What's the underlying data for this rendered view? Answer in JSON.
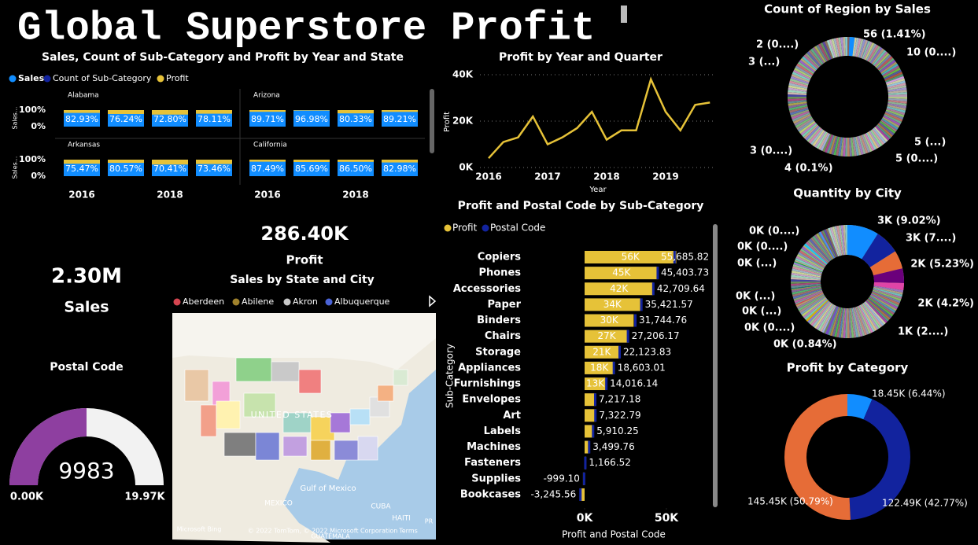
{
  "title": "Global Superstore Profit",
  "cards": [
    {
      "value": "2.30M",
      "label": "Sales"
    },
    {
      "value": "286.40K",
      "label": "Profit"
    }
  ],
  "chart_data": [
    {
      "type": "multibar",
      "title": "Sales, Count of Sub-Category and Profit by Year and State",
      "legend": [
        {
          "name": "Sales",
          "color": "#118dff"
        },
        {
          "name": "Count of Sub-Category",
          "color": "#12239e"
        },
        {
          "name": "Profit",
          "color": "#e6c238"
        }
      ],
      "categories": [
        "2016",
        null,
        "2018",
        null
      ],
      "panels": [
        {
          "name": "Alabama",
          "values": [
            82.93,
            76.24,
            72.8,
            78.11
          ],
          "value_labels": [
            "82.93%",
            "76.24%",
            "72.80%",
            "78.11%"
          ]
        },
        {
          "name": "Arizona",
          "values": [
            89.71,
            96.98,
            80.33,
            89.21
          ],
          "value_labels": [
            "89.71%",
            "96.98%",
            "80.33%",
            "89.21%"
          ]
        },
        {
          "name": "Arkansas",
          "values": [
            75.47,
            80.57,
            70.41,
            73.46
          ],
          "value_labels": [
            "75.47%",
            "80.57%",
            "70.41%",
            "73.46%"
          ]
        },
        {
          "name": "California",
          "values": [
            87.49,
            85.69,
            86.5,
            82.98
          ],
          "value_labels": [
            "87.49%",
            "85.69%",
            "86.50%",
            "82.98%"
          ]
        }
      ],
      "ylabel": "Sales...",
      "ylim": [
        0,
        100
      ],
      "yticks": [
        {
          "value": 100,
          "label": "100%"
        },
        {
          "value": 0,
          "label": "0%"
        }
      ]
    },
    {
      "type": "line",
      "title": "Profit by Year and Quarter",
      "categories": [
        "2016",
        null,
        null,
        null,
        "2017",
        null,
        null,
        null,
        "2018",
        null,
        null,
        null,
        "2019",
        null,
        null,
        null
      ],
      "values": [
        4000,
        11000,
        13000,
        22000,
        10000,
        13000,
        17000,
        24000,
        12000,
        16000,
        16000,
        38000,
        24000,
        16000,
        27000,
        28000
      ],
      "color": "#e6c238",
      "xlabel": "Year",
      "ylabel": "Profit",
      "grid": true,
      "ylim": [
        0,
        40000
      ],
      "yticks": [
        {
          "value": 0,
          "label": "0K"
        },
        {
          "value": 20000,
          "label": "20K"
        },
        {
          "value": 40000,
          "label": "40K"
        }
      ]
    },
    {
      "type": "hbar",
      "title": "Profit and Postal Code by Sub-Category",
      "categories": [
        "Copiers",
        "Phones",
        "Accessories",
        "Paper",
        "Binders",
        "Chairs",
        "Storage",
        "Appliances",
        "Furnishings",
        "Envelopes",
        "Art",
        "Labels",
        "Machines",
        "Fasteners",
        "Supplies",
        "Bookcases"
      ],
      "series": [
        {
          "name": "Profit",
          "color": "#e6c238",
          "values": [
            56000,
            45000,
            42000,
            34000,
            30000,
            27000,
            21000,
            18000,
            13000,
            7000,
            7000,
            5500,
            3000,
            1000,
            -1000,
            -3000
          ],
          "value_labels": [
            "56K",
            "45K",
            "42K",
            "34K",
            "30K",
            "27K",
            "21K",
            "18K",
            "13K",
            null,
            null,
            null,
            null,
            null,
            null,
            null
          ]
        },
        {
          "name": "Postal Code",
          "color": "#12239e",
          "values": [
            55685.82,
            45403.73,
            42709.64,
            35421.57,
            31744.76,
            27206.17,
            22123.83,
            18603.01,
            14016.14,
            7217.18,
            7322.79,
            5910.25,
            3499.76,
            1166.52,
            -999.1,
            -3245.56
          ],
          "value_labels": [
            "55,685.82",
            "45,403.73",
            "42,709.64",
            "35,421.57",
            "31,744.76",
            "27,206.17",
            "22,123.83",
            "18,603.01",
            "14,016.14",
            "7,217.18",
            "7,322.79",
            "5,910.25",
            "3,499.76",
            "1,166.52",
            "-999.10",
            "-3,245.56"
          ]
        }
      ],
      "xlabel": "Profit and Postal Code",
      "ylabel": "Sub-Category",
      "xlim": [
        -20000,
        58000
      ],
      "xticks": [
        {
          "value": 0,
          "label": "0K"
        },
        {
          "value": 50000,
          "label": "50K"
        }
      ]
    },
    {
      "type": "donut",
      "title": "Count of Region by Sales",
      "values": [
        1.41,
        0.25,
        0.13,
        0.13,
        0.1,
        0.08,
        0.08,
        0.05
      ],
      "value_labels": [
        "56 (1.41%)",
        "10 (0....)",
        "5 (...)",
        "5 (0....)",
        "4 (0.1%)",
        "3 (0....)",
        "3 (...)",
        "2 (0....)"
      ],
      "colors": [
        "#118dff",
        "#6f7fa8",
        "#8a8a8a",
        "#9a9a9a",
        "#7a7a7a",
        "#8c8c8c",
        "#a0a0a0",
        "#888888"
      ]
    },
    {
      "type": "donut",
      "title": "Quantity by City",
      "values": [
        9.02,
        7,
        5.23,
        4.2,
        2,
        0.84,
        0.5,
        0.3,
        0.3,
        0.3,
        0.5,
        0.5
      ],
      "value_labels": [
        "3K (9.02%)",
        "3K (7....)",
        "2K (5.23%)",
        "2K (4.2%)",
        "1K (2....)",
        "0K (0.84%)",
        "0K (0....)",
        "0K (...)",
        "0K (...)",
        "0K (...)",
        "0K (0....)",
        "0K (0....)"
      ],
      "colors": [
        "#118dff",
        "#12239e",
        "#e66c37",
        "#6b007b",
        "#e044a7",
        "#744ec2",
        "#d9b300",
        "#d64550",
        "#197278",
        "#1aab40",
        "#15c6f4",
        "#4092ff"
      ]
    },
    {
      "type": "donut",
      "title": "Profit by Category",
      "values": [
        6.44,
        42.77,
        50.79
      ],
      "value_labels": [
        "18.45K (6.44%)",
        "122.49K (42.77%)",
        "145.45K (50.79%)"
      ],
      "colors": [
        "#118dff",
        "#12239e",
        "#e66c37"
      ]
    },
    {
      "type": "gauge",
      "title": "Postal Code",
      "value": 9983,
      "min": {
        "value": 0,
        "label": "0.00K"
      },
      "max": {
        "value": 19970,
        "label": "19.97K"
      },
      "color": "#8e3fa0"
    },
    {
      "type": "map",
      "title": "Sales by State and City",
      "legend": [
        {
          "name": "Aberdeen",
          "color": "#d64550"
        },
        {
          "name": "Abilene",
          "color": "#a0822c"
        },
        {
          "name": "Akron",
          "color": "#c8c8c8"
        },
        {
          "name": "Albuquerque",
          "color": "#4a63d6"
        }
      ],
      "labels": [
        "UNITED STATES",
        "Gulf of Mexico",
        "MEXICO",
        "CUBA",
        "HAITI",
        "PR",
        "GUATEMALA",
        "Microsoft Bing",
        "© 2022 TomTom, © 2022 Microsoft Corporation",
        "Terms"
      ]
    }
  ]
}
